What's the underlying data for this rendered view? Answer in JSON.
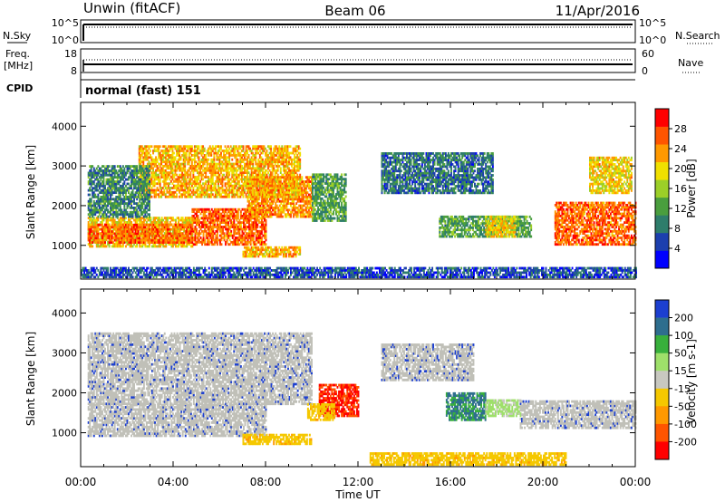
{
  "header": {
    "station": "Unwin (fitACF)",
    "beam": "Beam 06",
    "date": "11/Apr/2016"
  },
  "panels": {
    "nsky_label": "N.Sky",
    "nsearch_label": "N.Search",
    "nsky_ticks": [
      "10^5",
      "10^0"
    ],
    "freq_label_1": "Freq.",
    "freq_label_2": "[MHz]",
    "freq_ticks": [
      "18",
      "8"
    ],
    "nave_label": "Nave",
    "nave_ticks": [
      "60",
      "0"
    ],
    "cpid_label": "CPID",
    "cpid_text": "normal (fast) 151"
  },
  "colors": {
    "power_scale": [
      "#0000ff",
      "#1c3fae",
      "#2e7d6b",
      "#4a9e3e",
      "#9ccf28",
      "#f0e000",
      "#ff9900",
      "#ff5500",
      "#ff0000"
    ],
    "velocity_scale": [
      "#ff0000",
      "#ff5500",
      "#ff9900",
      "#f5c800",
      "#c8c8c0",
      "#9ee06a",
      "#38b03c",
      "#2e6e8e",
      "#1c3fd0"
    ],
    "ground_scatter": "#c0c0b8"
  },
  "chart_data": [
    {
      "type": "heatmap",
      "title": "Power",
      "xlabel": "Time UT",
      "ylabel": "Slant Range [km]",
      "x_ticks": [
        "00:00",
        "04:00",
        "08:00",
        "12:00",
        "16:00",
        "20:00",
        "00:00"
      ],
      "y_ticks": [
        "1000",
        "2000",
        "3000",
        "4000"
      ],
      "ylim": [
        150,
        4600
      ],
      "colorbar_label": "Power [dB]",
      "colorbar_ticks": [
        "4",
        "8",
        "12",
        "16",
        "20",
        "24",
        "28"
      ],
      "colorbar_range": [
        0,
        32
      ],
      "regions": [
        {
          "t0": 0.3,
          "t1": 4.8,
          "r0": 950,
          "r1": 1700,
          "db": 20
        },
        {
          "t0": 0.3,
          "t1": 4.8,
          "r0": 1050,
          "r1": 1500,
          "db": 26
        },
        {
          "t0": 4.8,
          "t1": 8.0,
          "r0": 1000,
          "r1": 1900,
          "db": 26
        },
        {
          "t0": 7.2,
          "t1": 10.0,
          "r0": 1700,
          "r1": 2700,
          "db": 24
        },
        {
          "t0": 2.5,
          "t1": 9.5,
          "r0": 2200,
          "r1": 3500,
          "db": 22
        },
        {
          "t0": 0.3,
          "t1": 3.0,
          "r0": 1700,
          "r1": 3000,
          "db": 10
        },
        {
          "t0": 10.0,
          "t1": 11.5,
          "r0": 1600,
          "r1": 2800,
          "db": 12
        },
        {
          "t0": 7.0,
          "t1": 9.5,
          "r0": 700,
          "r1": 950,
          "db": 22
        },
        {
          "t0": 13.0,
          "t1": 17.8,
          "r0": 2300,
          "r1": 3300,
          "db": 8
        },
        {
          "t0": 15.5,
          "t1": 19.5,
          "r0": 1200,
          "r1": 1700,
          "db": 12
        },
        {
          "t0": 17.5,
          "t1": 18.8,
          "r0": 1200,
          "r1": 1700,
          "db": 20
        },
        {
          "t0": 20.5,
          "t1": 24.0,
          "r0": 1000,
          "r1": 2100,
          "db": 26
        },
        {
          "t0": 22.0,
          "t1": 23.8,
          "r0": 2300,
          "r1": 3200,
          "db": 20
        },
        {
          "t0": 0.0,
          "t1": 24.0,
          "r0": 180,
          "r1": 450,
          "db": 6
        }
      ]
    },
    {
      "type": "heatmap",
      "title": "Velocity",
      "xlabel": "Time UT",
      "ylabel": "Slant Range [km]",
      "x_ticks": [
        "00:00",
        "04:00",
        "08:00",
        "12:00",
        "16:00",
        "20:00",
        "00:00"
      ],
      "y_ticks": [
        "1000",
        "2000",
        "3000",
        "4000"
      ],
      "ylim": [
        150,
        4600
      ],
      "colorbar_label": "Velocity [m s-1]",
      "colorbar_ticks": [
        "200",
        "100",
        "50",
        "15",
        "-15",
        "-50",
        "-100",
        "-200"
      ],
      "regions": [
        {
          "t0": 0.3,
          "t1": 8.0,
          "r0": 900,
          "r1": 1700,
          "v": 0
        },
        {
          "t0": 0.3,
          "t1": 10.0,
          "r0": 1700,
          "r1": 3500,
          "v": 0
        },
        {
          "t0": 10.3,
          "t1": 12.0,
          "r0": 1400,
          "r1": 2200,
          "v": -200
        },
        {
          "t0": 9.8,
          "t1": 11.0,
          "r0": 1300,
          "r1": 1700,
          "v": -60
        },
        {
          "t0": 7.0,
          "t1": 10.0,
          "r0": 700,
          "r1": 950,
          "v": -60
        },
        {
          "t0": 15.8,
          "t1": 17.5,
          "r0": 1300,
          "r1": 2000,
          "v": 150
        },
        {
          "t0": 17.5,
          "t1": 19.0,
          "r0": 1400,
          "r1": 1800,
          "v": 40
        },
        {
          "t0": 19.0,
          "t1": 24.0,
          "r0": 1100,
          "r1": 1800,
          "v": 0
        },
        {
          "t0": 13.0,
          "t1": 17.0,
          "r0": 2300,
          "r1": 3200,
          "v": 0
        },
        {
          "t0": 12.5,
          "t1": 21.0,
          "r0": 180,
          "r1": 500,
          "v": -60
        }
      ]
    }
  ]
}
